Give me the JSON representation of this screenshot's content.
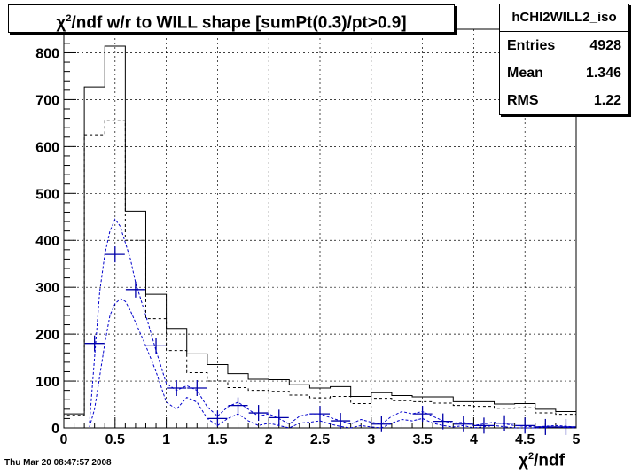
{
  "title": {
    "prefix": "χ",
    "sup": "2",
    "rest": "/ndf w/r to WILL shape [sumPt(0.3)/pt>0.9]"
  },
  "stats": {
    "name": "hCHI2WILL2_iso",
    "rows": [
      {
        "key": "Entries",
        "value": "4928"
      },
      {
        "key": "Mean",
        "value": "1.346"
      },
      {
        "key": "RMS",
        "value": "1.22"
      }
    ]
  },
  "timestamp": "Thu Mar 20 08:47:57 2008",
  "xlabel": {
    "prefix": "χ",
    "sup": "2",
    "rest": "/ndf"
  },
  "colors": {
    "solid": "#000000",
    "dashed": "#000000",
    "markers": "#0000a8",
    "curves": "#0000cc",
    "grid": "#000000"
  },
  "chart_data": {
    "type": "histogram",
    "bin_edges": [
      0,
      0.2,
      0.4,
      0.6,
      0.8,
      1.0,
      1.2,
      1.4,
      1.6,
      1.8,
      2.0,
      2.2,
      2.4,
      2.6,
      2.8,
      3.0,
      3.2,
      3.4,
      3.6,
      3.8,
      4.0,
      4.2,
      4.4,
      4.6,
      4.8,
      5.0
    ],
    "series": [
      {
        "style": "solid-step",
        "values": [
          30,
          727,
          814,
          462,
          285,
          212,
          158,
          135,
          116,
          104,
          103,
          92,
          85,
          88,
          67,
          75,
          69,
          66,
          66,
          56,
          56,
          51,
          52,
          40,
          35
        ]
      },
      {
        "style": "dashed-step",
        "values": [
          27,
          625,
          656,
          400,
          233,
          165,
          118,
          100,
          86,
          80,
          78,
          70,
          64,
          67,
          52,
          63,
          58,
          56,
          53,
          48,
          46,
          42,
          43,
          32,
          29
        ]
      },
      {
        "style": "markers",
        "x": [
          0.3,
          0.5,
          0.7,
          0.9,
          1.1,
          1.3,
          1.5,
          1.7,
          1.9,
          2.1,
          2.5,
          2.7,
          3.1,
          3.5,
          3.7,
          3.9,
          4.1,
          4.3,
          4.5,
          4.7,
          4.9
        ],
        "y": [
          180,
          370,
          295,
          175,
          85,
          85,
          20,
          48,
          32,
          22,
          30,
          15,
          8,
          30,
          14,
          8,
          5,
          10,
          5,
          2,
          2
        ]
      },
      {
        "style": "dashed-curve",
        "x": [
          0.25,
          0.3,
          0.35,
          0.4,
          0.45,
          0.5,
          0.55,
          0.6,
          0.65,
          0.7,
          0.8,
          0.9,
          1.0,
          1.1,
          1.2,
          1.3,
          1.4,
          1.5,
          1.6,
          1.7,
          1.8,
          1.9,
          2.0,
          2.1,
          2.2,
          2.3,
          2.4,
          2.5,
          2.6,
          2.7,
          2.8,
          2.9,
          3.0,
          3.1,
          3.2,
          3.3,
          3.4,
          3.5,
          3.6,
          3.7,
          3.8,
          3.9,
          4.0,
          4.2,
          4.4,
          4.6,
          4.8,
          5.0
        ],
        "y": [
          10,
          150,
          290,
          370,
          420,
          445,
          430,
          395,
          360,
          310,
          240,
          165,
          95,
          80,
          90,
          80,
          45,
          25,
          45,
          55,
          40,
          25,
          30,
          20,
          8,
          25,
          30,
          30,
          22,
          15,
          8,
          18,
          12,
          8,
          25,
          35,
          30,
          35,
          25,
          15,
          10,
          12,
          5,
          12,
          5,
          2,
          5,
          2
        ]
      },
      {
        "style": "dashed-curve",
        "x": [
          0.25,
          0.3,
          0.35,
          0.4,
          0.45,
          0.5,
          0.55,
          0.6,
          0.65,
          0.7,
          0.8,
          0.9,
          1.0,
          1.1,
          1.2,
          1.3,
          1.4,
          1.5,
          1.6,
          1.7,
          1.8,
          1.9,
          2.0,
          2.1,
          2.2,
          2.3,
          2.4,
          2.5,
          2.6,
          2.7,
          2.8,
          2.9,
          3.0,
          3.1,
          3.2,
          3.3,
          3.4,
          3.5,
          3.6,
          3.7,
          3.8,
          3.9,
          4.0,
          4.2,
          4.4,
          4.6,
          4.8,
          5.0
        ],
        "y": [
          2,
          40,
          110,
          180,
          240,
          265,
          275,
          270,
          250,
          225,
          175,
          120,
          55,
          40,
          65,
          55,
          20,
          5,
          20,
          30,
          15,
          5,
          10,
          5,
          0,
          10,
          12,
          15,
          8,
          3,
          0,
          5,
          2,
          0,
          10,
          18,
          15,
          20,
          10,
          5,
          2,
          5,
          0,
          5,
          0,
          0,
          2,
          0
        ]
      }
    ],
    "xlim": [
      0,
      5
    ],
    "ylim": [
      0,
      850
    ],
    "xticks": [
      0,
      0.5,
      1,
      1.5,
      2,
      2.5,
      3,
      3.5,
      4,
      4.5,
      5
    ],
    "xtick_labels": [
      "0",
      "0.5",
      "1",
      "1.5",
      "2",
      "2.5",
      "3",
      "3.5",
      "4",
      "4.5",
      "5"
    ],
    "yticks": [
      0,
      100,
      200,
      300,
      400,
      500,
      600,
      700,
      800
    ],
    "ytick_labels": [
      "0",
      "100",
      "200",
      "300",
      "400",
      "500",
      "600",
      "700",
      "800"
    ],
    "grid": true
  }
}
